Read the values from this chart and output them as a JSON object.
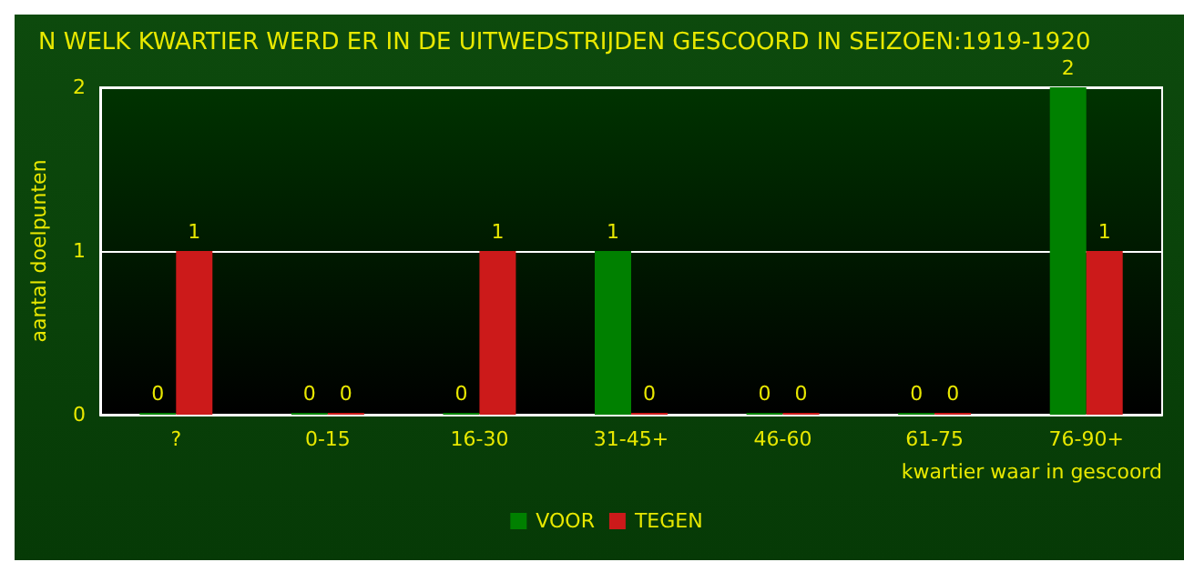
{
  "chart_data": {
    "type": "bar",
    "title": "N WELK KWARTIER WERD ER IN DE UITWEDSTRIJDEN GESCOORD IN SEIZOEN:1919-1920",
    "xlabel": "kwartier waar in gescoord",
    "ylabel": "aantal doelpunten",
    "categories": [
      "?",
      "0-15",
      "16-30",
      "31-45+",
      "46-60",
      "61-75",
      "76-90+"
    ],
    "series": [
      {
        "name": "VOOR",
        "color": "#008000",
        "values": [
          0,
          0,
          0,
          1,
          0,
          0,
          2
        ]
      },
      {
        "name": "TEGEN",
        "color": "#cc1a1a",
        "values": [
          1,
          0,
          1,
          0,
          0,
          0,
          1
        ]
      }
    ],
    "ylim": [
      0,
      2
    ],
    "yticks": [
      0,
      1,
      2
    ],
    "grid": "y",
    "legend": "bottom",
    "data_labels": true
  }
}
